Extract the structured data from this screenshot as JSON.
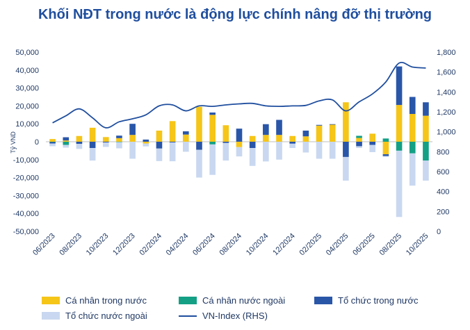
{
  "title": "Khối NĐT trong nước là động lực chính nâng đỡ thị trường",
  "chart_data": {
    "type": "bar",
    "title": "Khối NĐT trong nước là động lực chính nâng đỡ thị trường",
    "ylabel": "Tỷ VND",
    "ylim": [
      -50000,
      50000
    ],
    "yticks": [
      "50,000",
      "40,000",
      "30,000",
      "20,000",
      "10,000",
      "0",
      "-10,000",
      "-20,000",
      "-30,000",
      "-40,000",
      "-50,000"
    ],
    "y2lim": [
      0,
      1800
    ],
    "y2ticks": [
      "1,800",
      "1,600",
      "1,400",
      "1,200",
      "1,000",
      "800",
      "600",
      "400",
      "200",
      "0"
    ],
    "categories": [
      "06/2023",
      "07/2023",
      "08/2023",
      "09/2023",
      "10/2023",
      "11/2023",
      "12/2023",
      "01/2024",
      "02/2024",
      "03/2024",
      "04/2024",
      "05/2024",
      "06/2024",
      "07/2024",
      "08/2024",
      "09/2024",
      "10/2024",
      "11/2024",
      "12/2024",
      "01/2025",
      "02/2025",
      "03/2025",
      "04/2025",
      "05/2025",
      "06/2025",
      "07/2025",
      "08/2025",
      "09/2025",
      "10/2025"
    ],
    "xtick_labels": [
      "06/2023",
      "08/2023",
      "10/2023",
      "12/2023",
      "02/2024",
      "04/2024",
      "06/2024",
      "08/2024",
      "10/2024",
      "12/2024",
      "02/2025",
      "04/2025",
      "06/2025",
      "08/2025",
      "10/2025"
    ],
    "series": [
      {
        "name": "Cá nhân trong nước",
        "color": "#f5c518",
        "values": [
          1500,
          700,
          3200,
          7800,
          2600,
          2000,
          3800,
          -1000,
          6200,
          11500,
          4000,
          19500,
          15000,
          9200,
          -3000,
          3200,
          3800,
          3800,
          3200,
          3000,
          9000,
          9500,
          22000,
          2100,
          4500,
          -7000,
          20500,
          15500,
          14500
        ]
      },
      {
        "name": "Cá nhân nước ngoài",
        "color": "#14a085",
        "values": [
          -200,
          -1800,
          0,
          0,
          0,
          -200,
          0,
          0,
          0,
          0,
          0,
          0,
          -1500,
          0,
          0,
          0,
          0,
          0,
          0,
          0,
          0,
          0,
          0,
          1200,
          0,
          1800,
          -5000,
          -6500,
          -10500
        ]
      },
      {
        "name": "Tổ chức trong nước",
        "color": "#2a56a8",
        "values": [
          -800,
          1800,
          -1200,
          -3500,
          -400,
          1400,
          6200,
          1200,
          -3800,
          -400,
          1800,
          -4500,
          1300,
          -700,
          7300,
          -3500,
          6000,
          8400,
          -1100,
          3200,
          400,
          300,
          -8500,
          -2500,
          -1800,
          -1000,
          21500,
          9500,
          7500
        ]
      },
      {
        "name": "Tổ chức nước ngoài",
        "color": "#c9d8f0",
        "values": [
          -1500,
          -1500,
          -2800,
          -7000,
          -2500,
          -3500,
          -9500,
          -1600,
          -7000,
          -10500,
          -5600,
          -15500,
          -17000,
          -9800,
          -5200,
          -10000,
          -11000,
          -10000,
          -2400,
          -6000,
          -9500,
          -9500,
          -13200,
          -1000,
          -4000,
          -400,
          -37000,
          -18000,
          -11200
        ]
      },
      {
        "name": "VN-Index (RHS)",
        "color": "#1f4e9e",
        "axis": "right",
        "values": [
          1090,
          1160,
          1230,
          1140,
          1040,
          1100,
          1130,
          1170,
          1260,
          1270,
          1210,
          1260,
          1255,
          1270,
          1280,
          1285,
          1260,
          1255,
          1260,
          1265,
          1310,
          1320,
          1210,
          1300,
          1380,
          1500,
          1690,
          1650,
          1640
        ]
      }
    ]
  }
}
